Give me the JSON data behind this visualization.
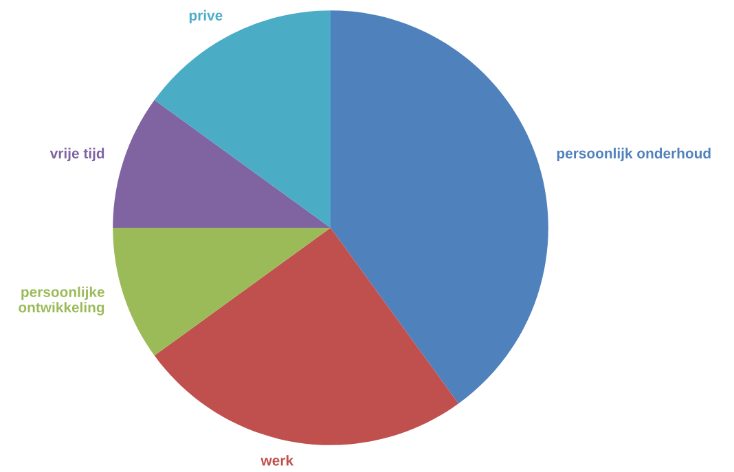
{
  "chart_data": {
    "type": "pie",
    "categories": [
      "persoonlijk onderhoud",
      "werk",
      "persoonlijke ontwikkeling",
      "vrije tijd",
      "prive"
    ],
    "values": [
      40,
      25,
      10,
      10,
      15
    ],
    "colors": [
      "#4f81bd",
      "#c0504d",
      "#9bbb59",
      "#8064a2",
      "#4bacc6"
    ],
    "legend": false
  }
}
